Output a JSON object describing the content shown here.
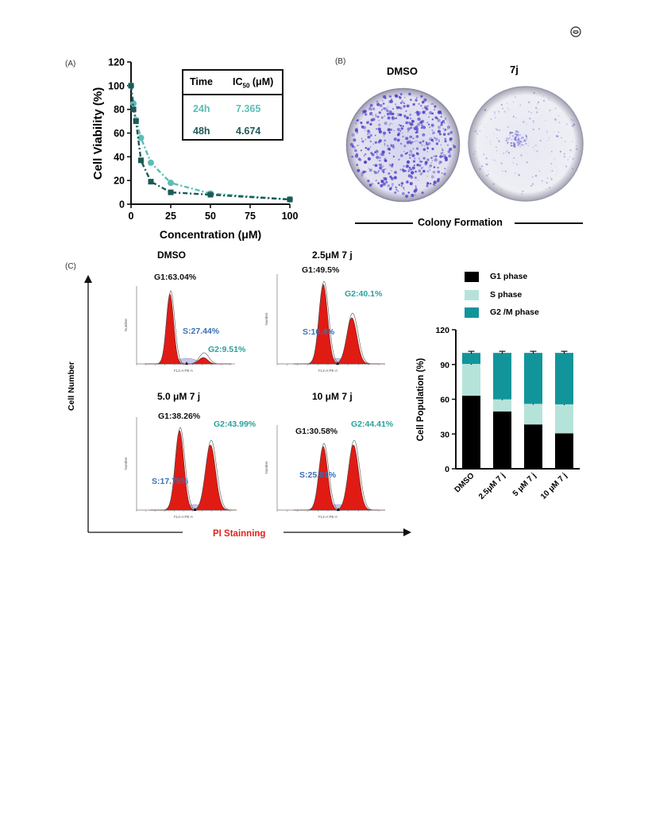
{
  "panels": {
    "a": "(A)",
    "b": "(B)",
    "c": "(C)"
  },
  "ic50_table": {
    "header_time": "Time",
    "header_ic": "IC",
    "header_ic_sub": "50",
    "header_ic_unit": "(μM)",
    "rows": [
      {
        "time": "24h",
        "value": "7.365",
        "color": "#5cbdb5"
      },
      {
        "time": "48h",
        "value": "4.674",
        "color": "#1d5a57"
      }
    ]
  },
  "colony": {
    "dmso_label": "DMSO",
    "drug_label": "7j",
    "caption": "Colony Formation",
    "stain_color": "#4a3fc8"
  },
  "flow": {
    "y_axis_label": "Cell Number",
    "x_axis_label": "PI Stainning",
    "histogram_x_label": "FL2-A:PE-A",
    "histogram_y_label": "Number",
    "plots": [
      {
        "title": "DMSO",
        "g1": "G1:63.04%",
        "s": "S:27.44%",
        "g2": "G2:9.51%"
      },
      {
        "title": "2.5μM 7 j",
        "g1": "G1:49.5%",
        "s": "S:10.4%",
        "g2": "G2:40.1%"
      },
      {
        "title": "5.0 μM 7 j",
        "g1": "G1:38.26%",
        "s": "S:17.75%",
        "g2": "G2:43.99%"
      },
      {
        "title": "10 μM 7 j",
        "g1": "G1:30.58%",
        "s": "S:25.01%",
        "g2": "G2:44.41%"
      }
    ]
  },
  "legend": {
    "items": [
      {
        "label": "G1  phase",
        "color": "#000000"
      },
      {
        "label": "S  phase",
        "color": "#b5e3da"
      },
      {
        "label": "G2 /M   phase",
        "color": "#12959a"
      }
    ]
  },
  "chart_data": [
    {
      "type": "line",
      "xlabel": "Concentration (μM)",
      "ylabel": "Cell Viability (%)",
      "xlim": [
        0,
        100
      ],
      "ylim": [
        0,
        120
      ],
      "x_ticks": [
        0,
        25,
        50,
        75,
        100
      ],
      "y_ticks": [
        0,
        20,
        40,
        60,
        80,
        100,
        120
      ],
      "series": [
        {
          "name": "24h",
          "color": "#5cbdb5",
          "x": [
            0,
            1.5625,
            3.125,
            6.25,
            12.5,
            25,
            50,
            100
          ],
          "y": [
            100,
            85,
            71,
            56,
            35,
            18,
            9,
            4
          ]
        },
        {
          "name": "48h",
          "color": "#1d5a57",
          "x": [
            0,
            1.5625,
            3.125,
            6.25,
            12.5,
            25,
            50,
            100
          ],
          "y": [
            100,
            80,
            70,
            37,
            19,
            10,
            8,
            4
          ]
        }
      ]
    },
    {
      "type": "bar",
      "stacked": true,
      "categories": [
        "DMSO",
        "2.5μM 7 j",
        "5 μM 7 j",
        "10 μM 7 j"
      ],
      "ylabel": "Cell Population (%)",
      "ylim": [
        0,
        120
      ],
      "y_ticks": [
        0,
        30,
        60,
        90,
        120
      ],
      "series": [
        {
          "name": "G1  phase",
          "color": "#000000",
          "values": [
            63.04,
            49.5,
            38.26,
            30.58
          ]
        },
        {
          "name": "S  phase",
          "color": "#b5e3da",
          "values": [
            27.44,
            10.4,
            17.75,
            25.01
          ]
        },
        {
          "name": "G2 /M   phase",
          "color": "#12959a",
          "values": [
            9.51,
            40.1,
            43.99,
            44.41
          ]
        }
      ]
    }
  ]
}
